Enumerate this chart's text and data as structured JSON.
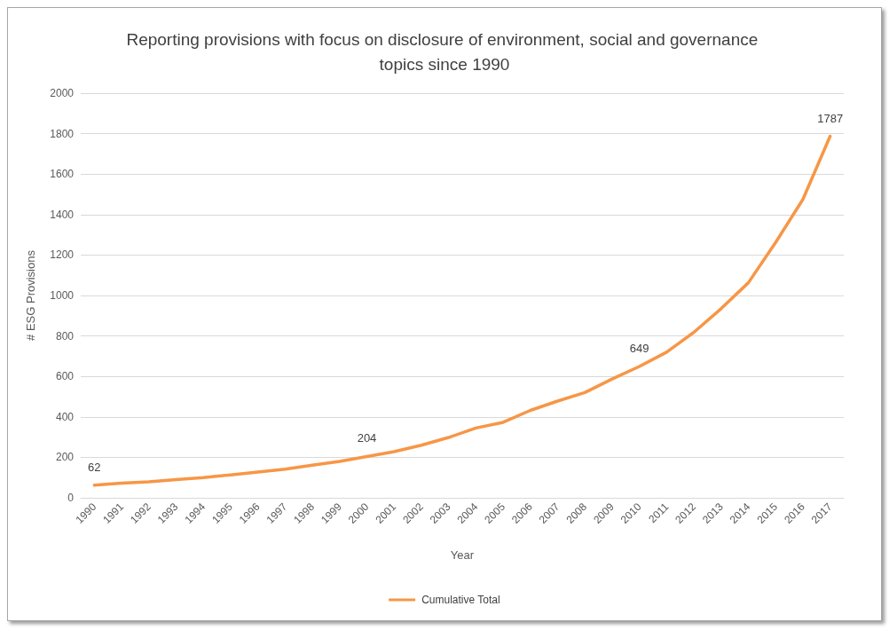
{
  "chart_data": {
    "type": "line",
    "title": "Reporting provisions with focus on disclosure of environment, social and governance topics since 1990",
    "xlabel": "Year",
    "ylabel": "# ESG Provisions",
    "categories": [
      "1990",
      "1991",
      "1992",
      "1993",
      "1994",
      "1995",
      "1996",
      "1997",
      "1998",
      "1999",
      "2000",
      "2001",
      "2002",
      "2003",
      "2004",
      "2005",
      "2006",
      "2007",
      "2008",
      "2009",
      "2010",
      "2011",
      "2012",
      "2013",
      "2014",
      "2015",
      "2016",
      "2017"
    ],
    "series": [
      {
        "name": "Cumulative Total",
        "color": "#f79646",
        "values": [
          62,
          72,
          79,
          90,
          100,
          113,
          127,
          141,
          161,
          180,
          204,
          228,
          260,
          298,
          345,
          373,
          432,
          478,
          520,
          587,
          649,
          720,
          818,
          935,
          1063,
          1262,
          1475,
          1787
        ],
        "value_labels": [
          "62",
          null,
          null,
          null,
          null,
          null,
          null,
          null,
          null,
          null,
          "204",
          null,
          null,
          null,
          null,
          null,
          null,
          null,
          null,
          null,
          "649",
          null,
          null,
          null,
          null,
          null,
          null,
          "1787"
        ]
      }
    ],
    "ylim": [
      0,
      2000
    ],
    "yticks": [
      0,
      200,
      400,
      600,
      800,
      1000,
      1200,
      1400,
      1600,
      1800,
      2000
    ],
    "grid": "y",
    "legend": "bottom",
    "marker": "none",
    "line_style": "solid"
  }
}
